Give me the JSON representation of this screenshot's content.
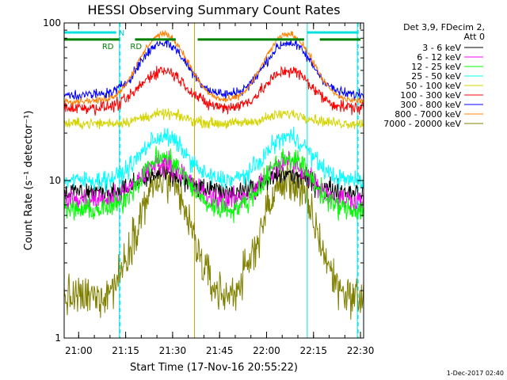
{
  "footer_timestamp": "1-Dec-2017 02:40",
  "chart_data": {
    "type": "line",
    "title": "HESSI Observing Summary Count Rates",
    "xlabel": "Start Time (17-Nov-16 20:55:22)",
    "ylabel": "Count Rate (s⁻¹ detector⁻¹)",
    "y_scale": "log",
    "ylim": [
      1,
      100
    ],
    "xlim": [
      "20:55:22",
      "22:31:00"
    ],
    "x_ticks": [
      "21:00",
      "21:15",
      "21:30",
      "21:45",
      "22:00",
      "22:15",
      "22:30"
    ],
    "y_ticks": [
      "1",
      "10",
      "100"
    ],
    "grid": false,
    "legend_position": "right",
    "legend_title": [
      "Det 3,9, FDecim 2,",
      "Att 0"
    ],
    "markers": {
      "solid_vertical_times": [
        "21:13",
        "21:37",
        "22:13",
        "22:29"
      ],
      "dashed_vertical_times": [
        "21:13",
        "22:29"
      ],
      "cyan_bar_intervals": [
        [
          "20:55",
          "21:12"
        ],
        [
          "22:13",
          "22:29"
        ]
      ],
      "cyan_bar_label": "N",
      "green_bar_intervals": [
        [
          "20:55",
          "21:13"
        ],
        [
          "21:18",
          "21:31"
        ],
        [
          "21:38",
          "22:12"
        ],
        [
          "22:17",
          "22:30"
        ]
      ],
      "green_labels": [
        {
          "text": "RD",
          "time": "21:10"
        },
        {
          "text": "RD",
          "time": "21:19"
        }
      ],
      "green_bar_level": 75
    },
    "series": [
      {
        "name": "3 - 6 keV",
        "color": "#000000",
        "base": 8.5,
        "peak": 11,
        "noise": 0.1
      },
      {
        "name": "6 - 12 keV",
        "color": "#ff00ff",
        "base": 7.5,
        "peak": 13,
        "noise": 0.11
      },
      {
        "name": "12 - 25 keV",
        "color": "#00ff00",
        "base": 6.5,
        "peak": 14,
        "noise": 0.11
      },
      {
        "name": "25 - 50 keV",
        "color": "#00ffff",
        "base": 10,
        "peak": 19,
        "noise": 0.09
      },
      {
        "name": "50 - 100 keV",
        "color": "#d4d400",
        "base": 23,
        "peak": 23,
        "noise": 0.05
      },
      {
        "name": "100 - 300 keV",
        "color": "#ff0000",
        "base": 29,
        "peak": 50,
        "noise": 0.06
      },
      {
        "name": "300 - 800 keV",
        "color": "#0000ff",
        "base": 35,
        "peak": 75,
        "noise": 0.05
      },
      {
        "name": "800 - 7000 keV",
        "color": "#ff8000",
        "base": 32,
        "peak": 85,
        "noise": 0.03
      },
      {
        "name": "7000 - 20000 keV",
        "color": "#808000",
        "base": 1.8,
        "peak": 10,
        "noise": 0.2
      }
    ]
  }
}
